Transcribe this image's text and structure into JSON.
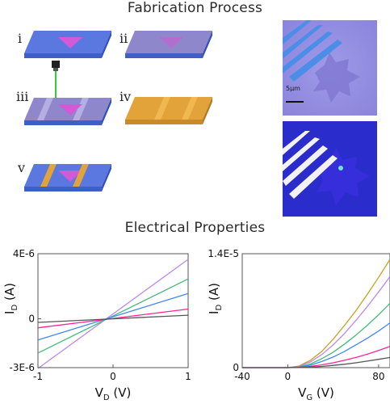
{
  "fabrication": {
    "title": "Fabrication Process",
    "steps": [
      {
        "label": "i"
      },
      {
        "label": "ii"
      },
      {
        "label": "iii"
      },
      {
        "label": "iv"
      },
      {
        "label": "v"
      }
    ],
    "scale_bar": "5μm"
  },
  "electrical": {
    "title": "Electrical Properties"
  },
  "colors": {
    "substrate_top": "#5b78e0",
    "substrate_side": "#3f5fc8",
    "flake": "#d25ad6",
    "resist": "#9b8fd6",
    "gold": "#e2a33a",
    "laser": "#33cc33"
  },
  "chart_data": [
    {
      "type": "line",
      "xlabel": "V_D (V)",
      "ylabel": "I_D (A)",
      "xlim": [
        -1,
        1
      ],
      "ylim": [
        -3e-06,
        4e-06
      ],
      "x_ticks": [
        "-1",
        "0",
        "1"
      ],
      "y_ticks": [
        "4E-6",
        "0",
        "-3E-6"
      ],
      "grid": false,
      "series": [
        {
          "color": "#bb88ee",
          "x": [
            -1,
            1
          ],
          "y": [
            -3.05e-06,
            3.65e-06
          ]
        },
        {
          "color": "#44bb77",
          "x": [
            -1,
            1
          ],
          "y": [
            -2.1e-06,
            2.45e-06
          ]
        },
        {
          "color": "#4488ee",
          "x": [
            -1,
            1
          ],
          "y": [
            -1.3e-06,
            1.55e-06
          ]
        },
        {
          "color": "#ff2299",
          "x": [
            -1,
            1
          ],
          "y": [
            -5.5e-07,
            6e-07
          ]
        },
        {
          "color": "#555555",
          "x": [
            -1,
            1
          ],
          "y": [
            -2.2e-07,
            2.2e-07
          ]
        }
      ]
    },
    {
      "type": "line",
      "xlabel": "V_G (V)",
      "ylabel": "I_D (A)",
      "xlim": [
        -40,
        90
      ],
      "ylim": [
        0,
        1.4e-05
      ],
      "x_ticks": [
        "-40",
        "0",
        "80"
      ],
      "y_ticks": [
        "1.4E-5",
        "0"
      ],
      "grid": false,
      "series": [
        {
          "color": "#c9a020",
          "x": [
            -40,
            0,
            10,
            20,
            30,
            40,
            50,
            60,
            70,
            80,
            90
          ],
          "y": [
            0,
            0,
            2e-07,
            9e-07,
            2e-06,
            3.5e-06,
            5.2e-06,
            7e-06,
            9e-06,
            1.11e-05,
            1.33e-05
          ]
        },
        {
          "color": "#bb88ee",
          "x": [
            -40,
            0,
            10,
            20,
            30,
            40,
            50,
            60,
            70,
            80,
            90
          ],
          "y": [
            0,
            0,
            1.5e-07,
            7e-07,
            1.6e-06,
            2.8e-06,
            4.2e-06,
            5.8e-06,
            7.5e-06,
            9.3e-06,
            1.12e-05
          ]
        },
        {
          "color": "#44bb77",
          "x": [
            -40,
            0,
            10,
            20,
            30,
            40,
            50,
            60,
            70,
            80,
            90
          ],
          "y": [
            0,
            0,
            1e-07,
            4.5e-07,
            1.1e-06,
            1.9e-06,
            2.9e-06,
            4e-06,
            5.2e-06,
            6.5e-06,
            7.9e-06
          ]
        },
        {
          "color": "#4488ee",
          "x": [
            -40,
            0,
            10,
            20,
            30,
            40,
            50,
            60,
            70,
            80,
            90
          ],
          "y": [
            0,
            0,
            8e-08,
            3e-07,
            7.5e-07,
            1.3e-06,
            2e-06,
            2.8e-06,
            3.6e-06,
            4.5e-06,
            5.5e-06
          ]
        },
        {
          "color": "#ff2299",
          "x": [
            -40,
            0,
            10,
            20,
            30,
            40,
            50,
            60,
            70,
            80,
            90
          ],
          "y": [
            0,
            0,
            4e-08,
            1.5e-07,
            3.5e-07,
            6e-07,
            9e-07,
            1.25e-06,
            1.65e-06,
            2.1e-06,
            2.6e-06
          ]
        },
        {
          "color": "#555555",
          "x": [
            -40,
            0,
            10,
            20,
            30,
            40,
            50,
            60,
            70,
            80,
            90
          ],
          "y": [
            0,
            0,
            2e-08,
            7e-08,
            1.5e-07,
            2.8e-07,
            4.2e-07,
            6e-07,
            8e-07,
            1.02e-06,
            1.25e-06
          ]
        }
      ]
    }
  ]
}
